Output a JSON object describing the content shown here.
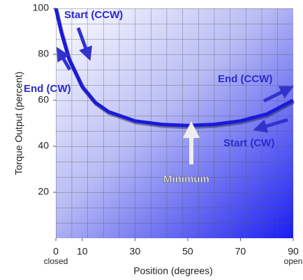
{
  "chart_data": {
    "type": "line",
    "x_label": "Position (degrees)",
    "y_label": "Torque Output (percent)",
    "x": [
      0,
      2,
      5,
      10,
      15,
      20,
      30,
      40,
      50,
      60,
      70,
      80,
      90
    ],
    "series": [
      {
        "name": "Torque",
        "color": "#1a1adb",
        "values": [
          100,
          90,
          78,
          66,
          59,
          55,
          51,
          49.5,
          49,
          49.5,
          51,
          54,
          60
        ]
      }
    ],
    "xlim": [
      0,
      90
    ],
    "xticks": [
      0,
      10,
      30,
      50,
      70,
      90
    ],
    "ylim": [
      0,
      100
    ],
    "yticks": [
      20,
      40,
      60,
      80,
      100
    ],
    "x_end_labels": [
      "closed",
      "open"
    ],
    "annotations": [
      "Start (CCW)",
      "End (CW)",
      "End (CCW)",
      "Start (CW)",
      "Minimum"
    ]
  }
}
